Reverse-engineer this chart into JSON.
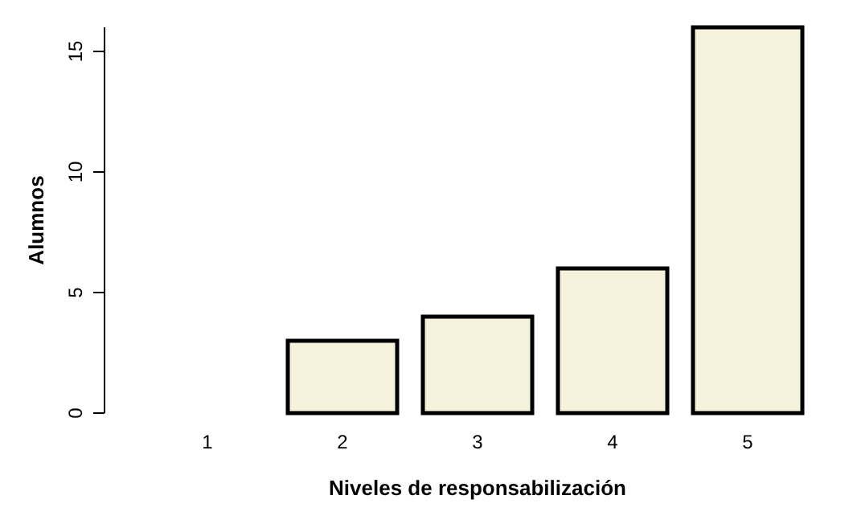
{
  "chart_data": {
    "type": "bar",
    "xlabel": "Niveles de responsabilización",
    "ylabel": "Alumnos",
    "categories": [
      "1",
      "2",
      "3",
      "4",
      "5"
    ],
    "values": [
      0,
      3,
      4,
      6,
      16
    ],
    "color": "#f5f3dc",
    "ylim": [
      0,
      16
    ],
    "yticks": [
      0,
      5,
      10,
      15
    ],
    "grid": false
  }
}
